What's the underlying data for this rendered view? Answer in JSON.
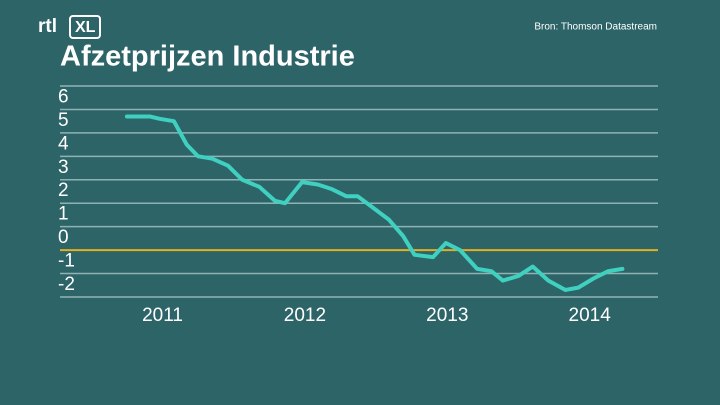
{
  "logo": {
    "left": "rtl",
    "right": "XL"
  },
  "source": "Bron: Thomson Datastream",
  "chart_data": {
    "type": "line",
    "title": "Afzetprijzen Industrie",
    "x": [
      2010.75,
      2010.91,
      2010.98,
      2011.08,
      2011.17,
      2011.25,
      2011.35,
      2011.46,
      2011.56,
      2011.68,
      2011.79,
      2011.86,
      2011.98,
      2012.09,
      2012.19,
      2012.29,
      2012.37,
      2012.48,
      2012.59,
      2012.69,
      2012.77,
      2012.9,
      2012.99,
      2013.09,
      2013.21,
      2013.31,
      2013.39,
      2013.5,
      2013.6,
      2013.71,
      2013.83,
      2013.92,
      2014.03,
      2014.13,
      2014.23
    ],
    "series": [
      {
        "color": "#3fd0c0",
        "values": [
          5.7,
          5.7,
          5.6,
          5.5,
          4.5,
          4.0,
          3.9,
          3.6,
          3.0,
          2.7,
          2.1,
          2.0,
          2.9,
          2.8,
          2.6,
          2.3,
          2.3,
          1.8,
          1.3,
          0.6,
          -0.2,
          -0.3,
          0.3,
          0.0,
          -0.8,
          -0.9,
          -1.3,
          -1.1,
          -0.7,
          -1.3,
          -1.7,
          -1.6,
          -1.2,
          -0.9,
          -0.8
        ]
      }
    ],
    "xlim": [
      2010.28,
      2014.48
    ],
    "xticks": [
      2011,
      2012,
      2013,
      2014
    ],
    "ylim": [
      -2,
      7
    ],
    "yticks": [
      -2,
      -1,
      0,
      1,
      2,
      3,
      4,
      5,
      6
    ],
    "grid": true,
    "grid_color": "#8fb3b4",
    "zero_line_color": "#e0b020"
  }
}
